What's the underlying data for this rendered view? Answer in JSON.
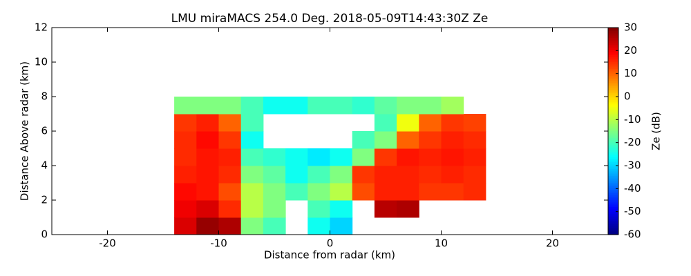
{
  "chart_data": {
    "type": "heatmap",
    "title": "LMU miraMACS 254.0 Deg. 2018-05-09T14:43:30Z  Ze",
    "xlabel": "Distance from radar (km)",
    "ylabel": "Distance Above radar  (km)",
    "colorbar_label": "Ze (dB)",
    "colormap": "jet",
    "x": [
      -13,
      -11,
      -9,
      -7,
      -5,
      -3,
      -1,
      1,
      3,
      5,
      7,
      9,
      11,
      13
    ],
    "y": [
      0.5,
      1.5,
      2.5,
      3.5,
      4.5,
      5.5,
      6.5,
      7.5
    ],
    "z": [
      [
        22,
        28,
        26,
        -15,
        -20,
        null,
        -25,
        -30,
        null,
        null,
        null,
        null,
        null,
        null
      ],
      [
        20,
        22,
        15,
        -10,
        -15,
        null,
        -20,
        -25,
        null,
        25,
        26,
        null,
        null,
        null
      ],
      [
        18,
        17,
        12,
        -10,
        -15,
        -20,
        -15,
        -10,
        12,
        16,
        16,
        14,
        14,
        15
      ],
      [
        16,
        17,
        15,
        -15,
        -18,
        -25,
        -20,
        -15,
        14,
        16,
        16,
        15,
        16,
        15
      ],
      [
        15,
        17,
        16,
        -20,
        -22,
        -25,
        -28,
        -25,
        -15,
        14,
        17,
        16,
        17,
        16
      ],
      [
        15,
        18,
        14,
        -25,
        null,
        null,
        null,
        null,
        -20,
        -15,
        10,
        14,
        16,
        15
      ],
      [
        14,
        16,
        10,
        -20,
        null,
        null,
        null,
        null,
        null,
        -20,
        -5,
        10,
        14,
        13
      ],
      [
        -15,
        -15,
        -15,
        -20,
        -25,
        -25,
        -20,
        -20,
        -22,
        -18,
        -15,
        -15,
        -12,
        null
      ]
    ],
    "xlim": [
      -25,
      25
    ],
    "xticks": [
      -20,
      -10,
      0,
      10,
      20
    ],
    "ylim": [
      0,
      12
    ],
    "yticks": [
      0,
      2,
      4,
      6,
      8,
      10,
      12
    ],
    "zlim": [
      -60,
      30
    ],
    "zticks": [
      -60,
      -50,
      -40,
      -30,
      -20,
      -10,
      0,
      10,
      20,
      30
    ]
  }
}
